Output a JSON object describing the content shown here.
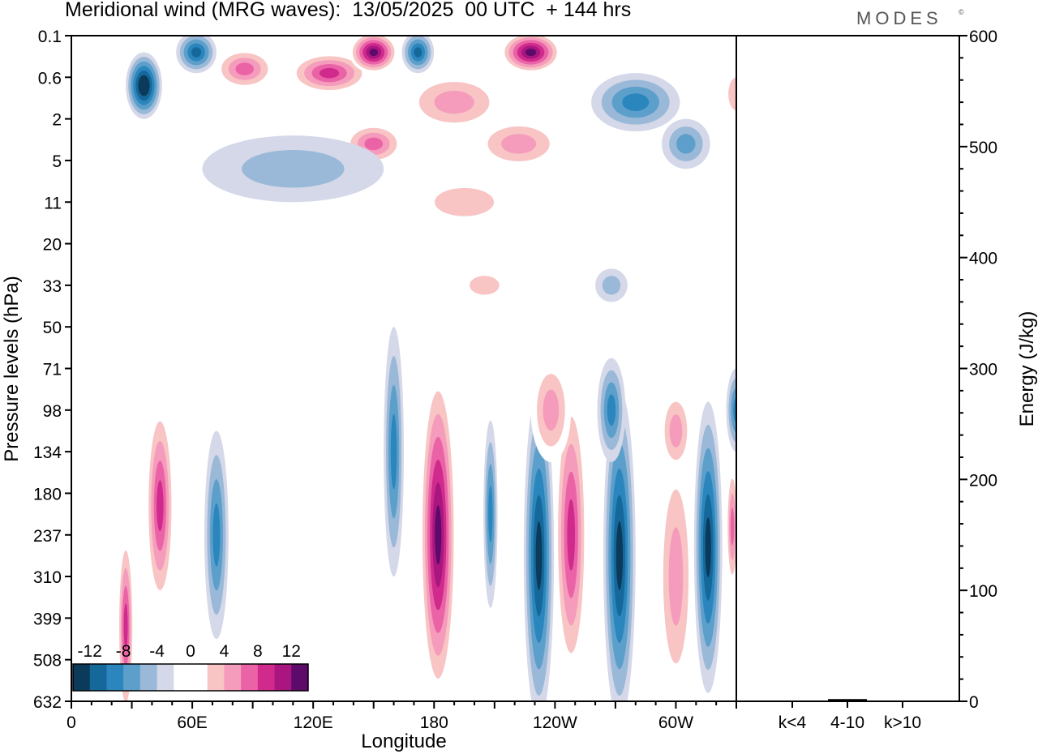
{
  "header": {
    "title": "Meridional wind (MRG waves):  13/05/2025  00 UTC  + 144 hrs",
    "brand": "MODES",
    "brand_mark": "©"
  },
  "chart_data": [
    {
      "type": "heatmap",
      "title": "Meridional wind (MRG waves):  13/05/2025  00 UTC  + 144 hrs",
      "xlabel": "Longitude",
      "ylabel": "Pressure levels (hPa)",
      "x_ticks": [
        {
          "lon": 0,
          "label": "0"
        },
        {
          "lon": 60,
          "label": "60E"
        },
        {
          "lon": 120,
          "label": "120E"
        },
        {
          "lon": 180,
          "label": "180"
        },
        {
          "lon": 240,
          "label": "120W"
        },
        {
          "lon": 300,
          "label": "60W"
        }
      ],
      "xlim": [
        0,
        330
      ],
      "y_levels": [
        "0.1",
        "0.6",
        "2",
        "5",
        "11",
        "20",
        "33",
        "50",
        "71",
        "98",
        "134",
        "180",
        "237",
        "310",
        "399",
        "508",
        "632"
      ],
      "colorbar": {
        "labels": [
          "-12",
          "-8",
          "-4",
          "0",
          "4",
          "8",
          "12"
        ],
        "levels": [
          -14,
          -12,
          -10,
          -8,
          -6,
          -4,
          -2,
          2,
          4,
          6,
          8,
          10,
          12,
          14
        ],
        "colors": [
          "#0b3a5a",
          "#15689a",
          "#2b86bd",
          "#5d9fcb",
          "#9ab9d8",
          "#d4d8e8",
          "#ffffff",
          "#ffffff",
          "#f8c4c4",
          "#f59bbb",
          "#ea63a7",
          "#d02b8c",
          "#a91680",
          "#5d0a6b"
        ]
      },
      "features": [
        {
          "lon": 182,
          "level_index": 12.0,
          "value": 14,
          "span_lon": 18,
          "span_levels": 8.0
        },
        {
          "lon": 208,
          "level_index": 11.5,
          "value": -8,
          "span_lon": 7,
          "span_levels": 4.5
        },
        {
          "lon": 232,
          "level_index": 12.5,
          "value": -12,
          "span_lon": 15,
          "span_levels": 8.0
        },
        {
          "lon": 248,
          "level_index": 12.0,
          "value": 10,
          "span_lon": 16,
          "span_levels": 7.0
        },
        {
          "lon": 272,
          "level_index": 12.5,
          "value": -12,
          "span_lon": 16,
          "span_levels": 8.0
        },
        {
          "lon": 300,
          "level_index": 13.0,
          "value": 6,
          "span_lon": 18,
          "span_levels": 6.0
        },
        {
          "lon": 316,
          "level_index": 12.3,
          "value": -12,
          "span_lon": 14,
          "span_levels": 7.0
        },
        {
          "lon": 328,
          "level_index": 11.8,
          "value": 8,
          "span_lon": 6,
          "span_levels": 3.0
        },
        {
          "lon": 160,
          "level_index": 10.0,
          "value": -8,
          "span_lon": 10,
          "span_levels": 6.0
        },
        {
          "lon": 44,
          "level_index": 11.3,
          "value": 10,
          "span_lon": 14,
          "span_levels": 5.0
        },
        {
          "lon": 72,
          "level_index": 12.0,
          "value": -8,
          "span_lon": 12,
          "span_levels": 5.0
        },
        {
          "lon": 27,
          "level_index": 14.2,
          "value": 10,
          "span_lon": 8,
          "span_levels": 4.5
        },
        {
          "lon": 238,
          "level_index": 9.0,
          "value": 6,
          "span_lon": 20,
          "span_levels": 2.5
        },
        {
          "lon": 268,
          "level_index": 9.0,
          "value": -8,
          "span_lon": 14,
          "span_levels": 2.5
        },
        {
          "lon": 300,
          "level_index": 9.5,
          "value": 6,
          "span_lon": 16,
          "span_levels": 2.0
        },
        {
          "lon": 330,
          "level_index": 9.0,
          "value": -8,
          "span_lon": 10,
          "span_levels": 2.0
        },
        {
          "lon": 36,
          "level_index": 1.2,
          "value": -14,
          "span_lon": 18,
          "span_levels": 1.6
        },
        {
          "lon": 62,
          "level_index": 0.4,
          "value": -10,
          "span_lon": 20,
          "span_levels": 1.0
        },
        {
          "lon": 86,
          "level_index": 0.8,
          "value": 8,
          "span_lon": 30,
          "span_levels": 1.0
        },
        {
          "lon": 128,
          "level_index": 0.9,
          "value": 10,
          "span_lon": 40,
          "span_levels": 1.0
        },
        {
          "lon": 150,
          "level_index": 0.4,
          "value": 14,
          "span_lon": 24,
          "span_levels": 1.0
        },
        {
          "lon": 172,
          "level_index": 0.4,
          "value": -10,
          "span_lon": 16,
          "span_levels": 1.0
        },
        {
          "lon": 228,
          "level_index": 0.4,
          "value": 14,
          "span_lon": 30,
          "span_levels": 1.0
        },
        {
          "lon": 190,
          "level_index": 1.6,
          "value": 6,
          "span_lon": 50,
          "span_levels": 1.4
        },
        {
          "lon": 150,
          "level_index": 2.6,
          "value": 8,
          "span_lon": 30,
          "span_levels": 1.0
        },
        {
          "lon": 222,
          "level_index": 2.6,
          "value": 6,
          "span_lon": 44,
          "span_levels": 1.2
        },
        {
          "lon": 280,
          "level_index": 1.6,
          "value": -8,
          "span_lon": 44,
          "span_levels": 1.4
        },
        {
          "lon": 305,
          "level_index": 2.6,
          "value": -6,
          "span_lon": 24,
          "span_levels": 1.2
        },
        {
          "lon": 195,
          "level_index": 4.0,
          "value": 4,
          "span_lon": 52,
          "span_levels": 1.2
        },
        {
          "lon": 110,
          "level_index": 3.2,
          "value": -4,
          "span_lon": 90,
          "span_levels": 1.6
        },
        {
          "lon": 330,
          "level_index": 1.4,
          "value": 4,
          "span_lon": 14,
          "span_levels": 1.4
        },
        {
          "lon": 205,
          "level_index": 6.0,
          "value": 4,
          "span_lon": 26,
          "span_levels": 0.8
        },
        {
          "lon": 268,
          "level_index": 6.0,
          "value": -4,
          "span_lon": 16,
          "span_levels": 0.8
        }
      ]
    },
    {
      "type": "bar",
      "categories": [
        "k<4",
        "4-10",
        "k>10"
      ],
      "values": [
        0.5,
        2,
        0.5
      ],
      "ylabel": "Energy (J/kg)",
      "ylim": [
        0,
        600
      ],
      "y_ticks": [
        "0",
        "100",
        "200",
        "300",
        "400",
        "500",
        "600"
      ]
    }
  ]
}
